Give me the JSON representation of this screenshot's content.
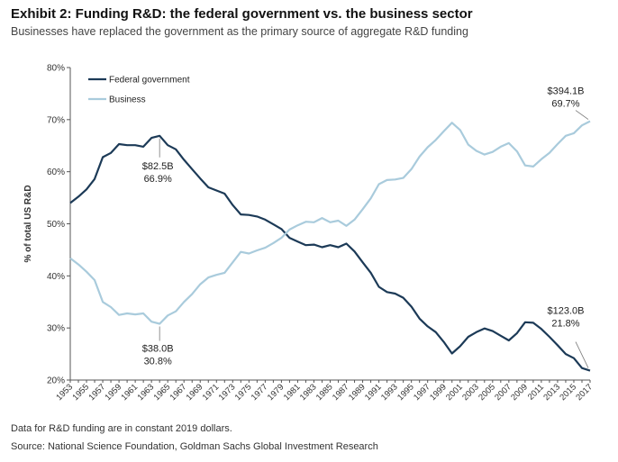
{
  "header": {
    "title": "Exhibit 2: Funding R&D: the federal government vs. the business sector",
    "subtitle": "Businesses have replaced the government as the primary source of aggregate R&D funding"
  },
  "footer": {
    "note": "Data for R&D funding are in constant 2019 dollars.",
    "source": "Source: National Science Foundation, Goldman Sachs Global Investment Research"
  },
  "colors": {
    "federal": "#1c3a57",
    "business": "#a9cbdc"
  },
  "chart_data": {
    "type": "line",
    "title": "Exhibit 2: Funding R&D: the federal government vs. the business sector",
    "subtitle": "Businesses have replaced the government as the primary source of aggregate R&D funding",
    "ylabel": "% of total US R&D",
    "xlabel": "",
    "ylim": [
      20,
      80
    ],
    "yticks": [
      "20%",
      "30%",
      "40%",
      "50%",
      "60%",
      "70%",
      "80%"
    ],
    "xticks": [
      "1953",
      "1955",
      "1957",
      "1959",
      "1961",
      "1963",
      "1965",
      "1967",
      "1969",
      "1971",
      "1973",
      "1975",
      "1977",
      "1979",
      "1981",
      "1983",
      "1985",
      "1987",
      "1989",
      "1991",
      "1993",
      "1995",
      "1997",
      "1999",
      "2001",
      "2003",
      "2005",
      "2007",
      "2009",
      "2011",
      "2013",
      "2015",
      "2017"
    ],
    "legend_position": "top-left",
    "grid": false,
    "x": [
      1953,
      1954,
      1955,
      1956,
      1957,
      1958,
      1959,
      1960,
      1961,
      1962,
      1963,
      1964,
      1965,
      1966,
      1967,
      1968,
      1969,
      1970,
      1971,
      1972,
      1973,
      1974,
      1975,
      1976,
      1977,
      1978,
      1979,
      1980,
      1981,
      1982,
      1983,
      1984,
      1985,
      1986,
      1987,
      1988,
      1989,
      1990,
      1991,
      1992,
      1993,
      1994,
      1995,
      1996,
      1997,
      1998,
      1999,
      2000,
      2001,
      2002,
      2003,
      2004,
      2005,
      2006,
      2007,
      2008,
      2009,
      2010,
      2011,
      2012,
      2013,
      2014,
      2015,
      2016,
      2017
    ],
    "series": [
      {
        "name": "Federal government",
        "values": [
          54.0,
          55.2,
          56.6,
          58.6,
          62.8,
          63.6,
          65.3,
          65.1,
          65.1,
          64.8,
          66.5,
          66.9,
          65.1,
          64.3,
          62.3,
          60.5,
          58.7,
          57.0,
          56.4,
          55.8,
          53.6,
          51.8,
          51.7,
          51.4,
          50.8,
          49.9,
          49.0,
          47.3,
          46.6,
          45.9,
          46.0,
          45.5,
          45.9,
          45.5,
          46.2,
          44.7,
          42.6,
          40.6,
          37.9,
          36.9,
          36.6,
          35.8,
          34.1,
          31.8,
          30.3,
          29.2,
          27.3,
          25.1,
          26.5,
          28.3,
          29.2,
          29.9,
          29.4,
          28.5,
          27.6,
          29.0,
          31.1,
          31.0,
          29.8,
          28.3,
          26.7,
          25.0,
          24.2,
          22.3,
          21.8
        ]
      },
      {
        "name": "Business",
        "values": [
          43.4,
          42.2,
          40.8,
          39.2,
          35.0,
          34.0,
          32.5,
          32.8,
          32.6,
          32.8,
          31.2,
          30.8,
          32.4,
          33.2,
          35.0,
          36.5,
          38.4,
          39.7,
          40.2,
          40.6,
          42.6,
          44.6,
          44.3,
          44.9,
          45.4,
          46.3,
          47.3,
          48.9,
          49.7,
          50.4,
          50.3,
          51.1,
          50.3,
          50.6,
          49.6,
          50.8,
          52.8,
          54.9,
          57.6,
          58.4,
          58.5,
          58.8,
          60.5,
          62.9,
          64.7,
          66.1,
          67.8,
          69.4,
          68.0,
          65.2,
          64.0,
          63.3,
          63.8,
          64.8,
          65.5,
          63.9,
          61.2,
          61.0,
          62.4,
          63.6,
          65.3,
          66.9,
          67.4,
          68.9,
          69.7
        ]
      }
    ],
    "annotations": [
      {
        "x": 1964,
        "y": 66.9,
        "amount": "$82.5B",
        "pct": "66.9%"
      },
      {
        "x": 1964,
        "y": 30.8,
        "amount": "$38.0B",
        "pct": "30.8%"
      },
      {
        "x": 2017,
        "y": 69.7,
        "amount": "$394.1B",
        "pct": "69.7%"
      },
      {
        "x": 2017,
        "y": 21.8,
        "amount": "$123.0B",
        "pct": "21.8%"
      }
    ]
  }
}
